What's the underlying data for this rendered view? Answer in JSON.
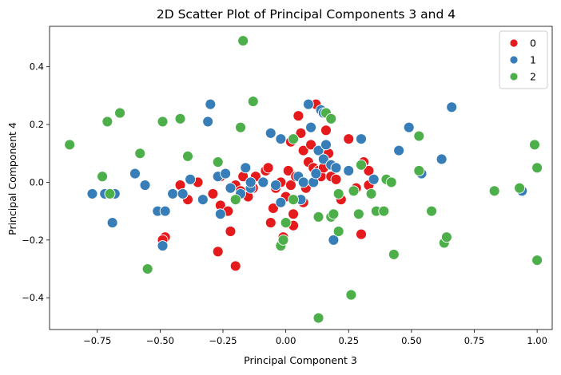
{
  "chart_data": {
    "type": "scatter",
    "title": "2D Scatter Plot of Principal Components 3 and 4",
    "xlabel": "Principal Component 3",
    "ylabel": "Principal Component 4",
    "xlim": [
      -0.94,
      1.06
    ],
    "ylim": [
      -0.51,
      0.54
    ],
    "xticks": [
      -0.75,
      -0.5,
      -0.25,
      0.0,
      0.25,
      0.5,
      0.75,
      1.0
    ],
    "xtick_labels": [
      "−0.75",
      "−0.50",
      "−0.25",
      "0.00",
      "0.25",
      "0.50",
      "0.75",
      "1.00"
    ],
    "yticks": [
      -0.4,
      -0.2,
      0.0,
      0.2,
      0.4
    ],
    "ytick_labels": [
      "−0.4",
      "−0.2",
      "0.0",
      "0.2",
      "0.4"
    ],
    "grid": false,
    "legend_position": "top-right",
    "series": [
      {
        "name": "0",
        "color": "#e41a1c",
        "points": [
          [
            -0.29,
            -0.04
          ],
          [
            -0.26,
            -0.08
          ],
          [
            -0.26,
            0.02
          ],
          [
            -0.27,
            -0.24
          ],
          [
            -0.23,
            -0.1
          ],
          [
            -0.22,
            -0.17
          ],
          [
            -0.2,
            -0.29
          ],
          [
            -0.2,
            -0.01
          ],
          [
            -0.18,
            -0.03
          ],
          [
            -0.17,
            0.02
          ],
          [
            -0.15,
            -0.05
          ],
          [
            -0.13,
            -0.02
          ],
          [
            -0.12,
            0.02
          ],
          [
            -0.08,
            0.04
          ],
          [
            -0.07,
            0.05
          ],
          [
            -0.06,
            -0.14
          ],
          [
            -0.05,
            -0.09
          ],
          [
            -0.04,
            -0.02
          ],
          [
            -0.02,
            0.0
          ],
          [
            -0.01,
            -0.19
          ],
          [
            0.0,
            -0.05
          ],
          [
            0.01,
            0.04
          ],
          [
            0.02,
            0.14
          ],
          [
            0.02,
            -0.01
          ],
          [
            0.03,
            -0.15
          ],
          [
            0.03,
            -0.11
          ],
          [
            0.04,
            0.02
          ],
          [
            0.05,
            0.23
          ],
          [
            0.06,
            0.17
          ],
          [
            0.07,
            0.11
          ],
          [
            0.07,
            -0.07
          ],
          [
            0.08,
            -0.02
          ],
          [
            0.09,
            0.07
          ],
          [
            0.1,
            0.13
          ],
          [
            0.11,
            0.05
          ],
          [
            0.12,
            0.27
          ],
          [
            0.13,
            0.03
          ],
          [
            0.13,
            0.04
          ],
          [
            0.14,
            0.02
          ],
          [
            0.15,
            0.05
          ],
          [
            0.16,
            0.18
          ],
          [
            0.17,
            0.1
          ],
          [
            0.18,
            0.02
          ],
          [
            0.2,
            0.01
          ],
          [
            0.22,
            -0.06
          ],
          [
            0.25,
            0.15
          ],
          [
            0.28,
            -0.02
          ],
          [
            0.3,
            -0.18
          ],
          [
            0.31,
            0.07
          ],
          [
            0.33,
            0.04
          ],
          [
            0.33,
            -0.01
          ],
          [
            -0.48,
            -0.19
          ],
          [
            -0.49,
            -0.2
          ],
          [
            -0.42,
            -0.01
          ],
          [
            -0.39,
            -0.06
          ],
          [
            -0.35,
            0.0
          ]
        ]
      },
      {
        "name": "1",
        "color": "#377eb8",
        "points": [
          [
            -0.77,
            -0.04
          ],
          [
            -0.72,
            -0.04
          ],
          [
            -0.68,
            -0.04
          ],
          [
            -0.69,
            -0.14
          ],
          [
            -0.6,
            0.03
          ],
          [
            -0.56,
            -0.01
          ],
          [
            -0.51,
            -0.1
          ],
          [
            -0.48,
            -0.1
          ],
          [
            -0.49,
            -0.22
          ],
          [
            -0.45,
            -0.04
          ],
          [
            -0.41,
            -0.04
          ],
          [
            -0.38,
            0.01
          ],
          [
            -0.33,
            -0.06
          ],
          [
            -0.31,
            0.21
          ],
          [
            -0.3,
            0.27
          ],
          [
            -0.27,
            0.02
          ],
          [
            -0.26,
            -0.11
          ],
          [
            -0.24,
            0.03
          ],
          [
            -0.22,
            -0.02
          ],
          [
            -0.18,
            -0.04
          ],
          [
            -0.16,
            0.05
          ],
          [
            -0.14,
            -0.02
          ],
          [
            -0.14,
            0.0
          ],
          [
            -0.09,
            0.0
          ],
          [
            -0.06,
            0.17
          ],
          [
            -0.04,
            -0.01
          ],
          [
            -0.02,
            -0.07
          ],
          [
            -0.02,
            0.15
          ],
          [
            0.05,
            0.02
          ],
          [
            0.06,
            -0.06
          ],
          [
            0.07,
            0.0
          ],
          [
            0.09,
            0.27
          ],
          [
            0.1,
            0.19
          ],
          [
            0.11,
            0.0
          ],
          [
            0.12,
            0.03
          ],
          [
            0.13,
            0.11
          ],
          [
            0.14,
            0.25
          ],
          [
            0.15,
            0.24
          ],
          [
            0.15,
            0.08
          ],
          [
            0.16,
            0.13
          ],
          [
            0.18,
            0.06
          ],
          [
            0.19,
            -0.2
          ],
          [
            0.2,
            0.05
          ],
          [
            0.25,
            0.04
          ],
          [
            0.3,
            0.15
          ],
          [
            0.35,
            0.01
          ],
          [
            0.45,
            0.11
          ],
          [
            0.49,
            0.19
          ],
          [
            0.54,
            0.03
          ],
          [
            0.62,
            0.08
          ],
          [
            0.66,
            0.26
          ],
          [
            0.94,
            -0.03
          ]
        ]
      },
      {
        "name": "2",
        "color": "#4daf4a",
        "points": [
          [
            -0.86,
            0.13
          ],
          [
            -0.73,
            0.02
          ],
          [
            -0.71,
            0.21
          ],
          [
            -0.7,
            -0.04
          ],
          [
            -0.66,
            0.24
          ],
          [
            -0.58,
            0.1
          ],
          [
            -0.55,
            -0.3
          ],
          [
            -0.49,
            0.21
          ],
          [
            -0.42,
            0.22
          ],
          [
            -0.39,
            0.09
          ],
          [
            -0.27,
            0.07
          ],
          [
            -0.2,
            -0.06
          ],
          [
            -0.18,
            0.19
          ],
          [
            -0.17,
            0.49
          ],
          [
            -0.13,
            0.28
          ],
          [
            -0.02,
            -0.22
          ],
          [
            -0.01,
            -0.2
          ],
          [
            0.0,
            -0.14
          ],
          [
            0.03,
            -0.06
          ],
          [
            0.03,
            0.15
          ],
          [
            0.13,
            -0.47
          ],
          [
            0.13,
            -0.12
          ],
          [
            0.16,
            0.24
          ],
          [
            0.18,
            0.22
          ],
          [
            0.18,
            -0.12
          ],
          [
            0.19,
            -0.11
          ],
          [
            0.21,
            -0.17
          ],
          [
            0.21,
            -0.04
          ],
          [
            0.26,
            -0.39
          ],
          [
            0.27,
            -0.03
          ],
          [
            0.29,
            -0.11
          ],
          [
            0.3,
            0.06
          ],
          [
            0.34,
            -0.04
          ],
          [
            0.36,
            -0.1
          ],
          [
            0.39,
            -0.1
          ],
          [
            0.4,
            0.01
          ],
          [
            0.42,
            0.0
          ],
          [
            0.43,
            -0.25
          ],
          [
            0.53,
            0.16
          ],
          [
            0.53,
            0.04
          ],
          [
            0.58,
            -0.1
          ],
          [
            0.63,
            -0.21
          ],
          [
            0.64,
            -0.19
          ],
          [
            0.83,
            -0.03
          ],
          [
            0.93,
            -0.02
          ],
          [
            0.99,
            0.13
          ],
          [
            1.0,
            0.05
          ],
          [
            1.0,
            -0.27
          ]
        ]
      }
    ]
  }
}
